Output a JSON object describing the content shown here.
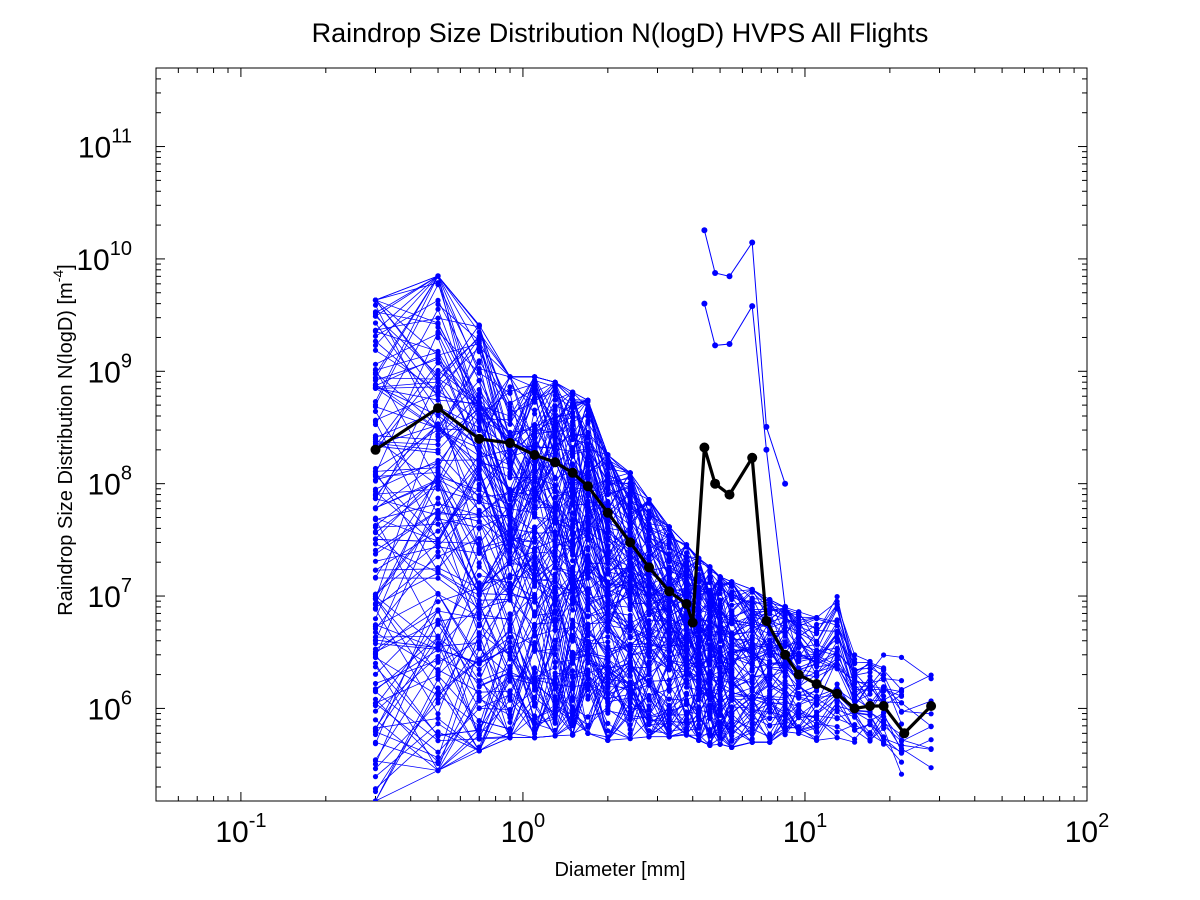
{
  "chart_data": {
    "type": "line",
    "title": "Raindrop Size Distribution N(logD) HVPS All Flights",
    "xlabel": "Diameter [mm]",
    "ylabel_main": "Raindrop Size Distribution N(logD) [m",
    "ylabel_sup": "-4",
    "ylabel_tail": "]",
    "xscale": "log",
    "yscale": "log",
    "xlim": [
      0.05,
      100
    ],
    "ylim": [
      150000,
      500000000000
    ],
    "x_tick_labels": [
      {
        "value": 0.1,
        "base": "10",
        "exp": "-1"
      },
      {
        "value": 1,
        "base": "10",
        "exp": "0"
      },
      {
        "value": 10,
        "base": "10",
        "exp": "1"
      },
      {
        "value": 100,
        "base": "10",
        "exp": "2"
      }
    ],
    "y_tick_labels": [
      {
        "value": 1000000,
        "base": "10",
        "exp": "6"
      },
      {
        "value": 10000000,
        "base": "10",
        "exp": "7"
      },
      {
        "value": 100000000,
        "base": "10",
        "exp": "8"
      },
      {
        "value": 1000000000,
        "base": "10",
        "exp": "9"
      },
      {
        "value": 10000000000,
        "base": "10",
        "exp": "10"
      },
      {
        "value": 100000000000,
        "base": "10",
        "exp": "11"
      }
    ],
    "colors": {
      "flights": "#0000ff",
      "mean": "#000000"
    },
    "x": [
      0.3,
      0.5,
      0.7,
      0.9,
      1.1,
      1.3,
      1.5,
      1.7,
      2.0,
      2.4,
      2.8,
      3.3,
      3.8,
      4.2,
      4.6,
      5.0,
      5.5,
      6.5,
      7.5,
      8.5,
      9.5,
      11,
      13,
      15,
      17,
      19,
      22,
      28
    ],
    "mean_series": {
      "x": [
        0.3,
        0.5,
        0.7,
        0.9,
        1.1,
        1.3,
        1.5,
        1.7,
        2.0,
        2.4,
        2.8,
        3.3,
        3.8,
        4.0,
        4.4,
        4.8,
        5.4,
        6.5,
        7.3,
        8.5,
        9.5,
        11,
        13,
        15,
        17,
        19,
        22.5,
        28
      ],
      "values": [
        200000000,
        470000000,
        250000000,
        230000000,
        180000000,
        155000000,
        125000000,
        95000000,
        55000000,
        30000000,
        18000000,
        11000000,
        8500000,
        5800000,
        210000000,
        100000000,
        80000000,
        170000000,
        6000000,
        3000000,
        2000000,
        1650000,
        1350000,
        1000000,
        1050000,
        1050000,
        600000,
        1050000
      ]
    },
    "upper_flight_series": [
      {
        "x": [
          4.4,
          4.8,
          5.4,
          6.5,
          7.3,
          8.5
        ],
        "values": [
          18000000000,
          7500000000,
          7000000000,
          14000000000,
          320000000,
          100000000
        ]
      },
      {
        "x": [
          4.4,
          4.8,
          5.4,
          6.5,
          7.3,
          8.5
        ],
        "values": [
          4000000000,
          1700000000,
          1750000000,
          3800000000,
          200000000,
          8000000
        ]
      }
    ],
    "flight_envelope": {
      "x": [
        0.3,
        0.5,
        0.7,
        0.9,
        1.1,
        1.3,
        1.5,
        1.7,
        2.0,
        2.4,
        2.8,
        3.3,
        3.8,
        4.2,
        4.6,
        5.0,
        5.5,
        6.5,
        7.5,
        8.5,
        9.5,
        11,
        13,
        15,
        17,
        19,
        22,
        28
      ],
      "max": [
        10500000000,
        17000000000,
        5500000000,
        1700000000,
        1700000000,
        1500000000,
        1200000000,
        1000000000,
        300000000,
        200000000,
        110000000,
        60000000,
        40000000,
        30000000,
        25000000,
        20000000,
        18000000,
        15000000,
        12000000,
        10000000,
        9000000,
        8000000,
        14000000,
        3500000,
        3500000,
        3500000,
        3500000,
        3500000
      ],
      "min": [
        150000,
        280000,
        420000,
        550000,
        550000,
        570000,
        580000,
        600000,
        520000,
        540000,
        560000,
        560000,
        580000,
        520000,
        470000,
        480000,
        450000,
        500000,
        500000,
        550000,
        600000,
        520000,
        550000,
        500000,
        500000,
        480000,
        260000,
        260000
      ]
    }
  }
}
